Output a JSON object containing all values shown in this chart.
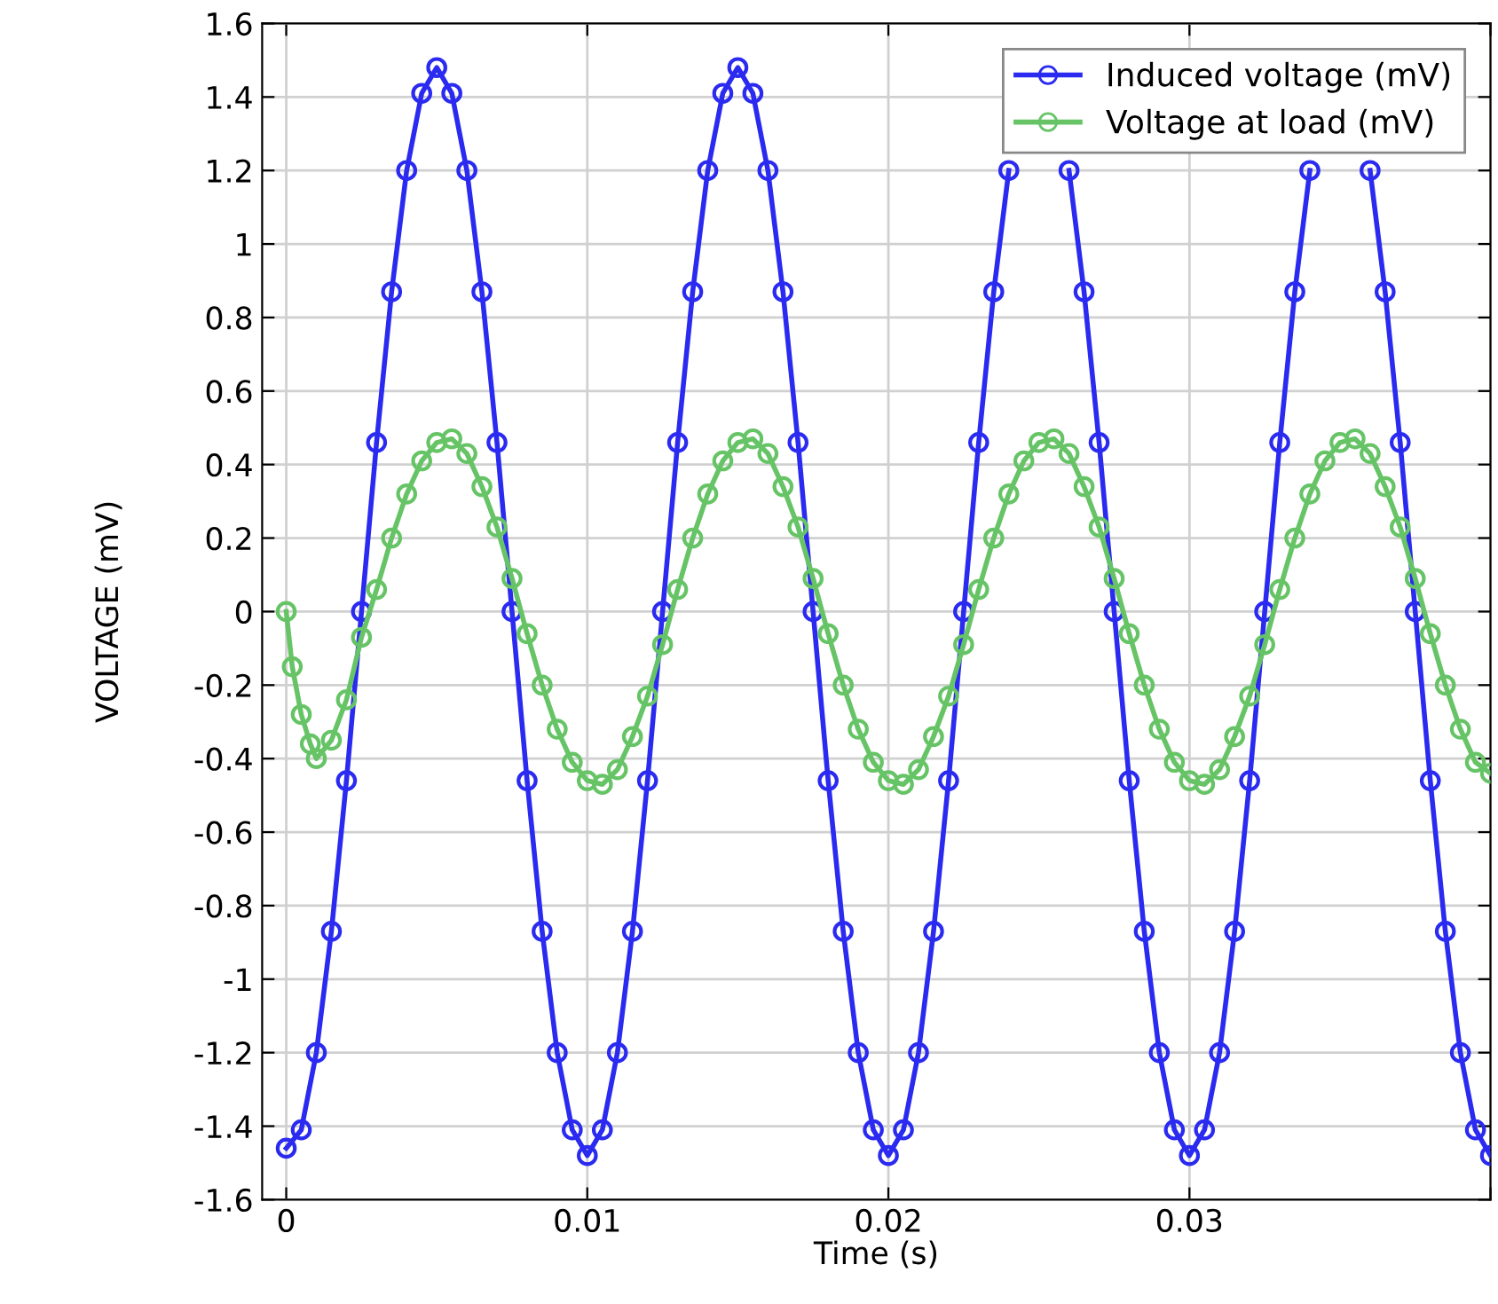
{
  "chart_data": {
    "type": "line",
    "xlabel": "Time (s)",
    "ylabel": "VOLTAGE (mV)",
    "xlim": [
      -0.0008,
      0.04
    ],
    "ylim": [
      -1.6,
      1.6
    ],
    "xticks": [
      0,
      0.01,
      0.02,
      0.03,
      {
        "value": 0.04,
        "label": null
      }
    ],
    "yticks": [
      -1.6,
      -1.4,
      -1.2,
      -1,
      -0.8,
      -0.6,
      -0.4,
      -0.2,
      0,
      0.2,
      0.4,
      0.6,
      0.8,
      1,
      1.2,
      1.4,
      1.6
    ],
    "grid": true,
    "legend": "top right",
    "marker": "circle",
    "line_style": "solid",
    "series": [
      {
        "name": "Induced voltage (mV)",
        "color": "#2a2af0",
        "x": [
          0,
          0.0005,
          0.001,
          0.0015,
          0.002,
          0.0025,
          0.003,
          0.0035,
          0.004,
          0.0045,
          0.005,
          0.0055,
          0.006,
          0.0065,
          0.007,
          0.0075,
          0.008,
          0.0085,
          0.009,
          0.0095,
          0.01,
          0.0105,
          0.011,
          0.0115,
          0.012,
          0.0125,
          0.013,
          0.0135,
          0.014,
          0.0145,
          0.015,
          0.0155,
          0.016,
          0.0165,
          0.017,
          0.0175,
          0.018,
          0.0185,
          0.019,
          0.0195,
          0.02,
          0.0205,
          0.021,
          0.0215,
          0.022,
          0.0225,
          0.023,
          0.0235,
          0.024,
          0.0245,
          0.025,
          0.0255,
          0.026,
          0.0265,
          0.027,
          0.0275,
          0.028,
          0.0285,
          0.029,
          0.0295,
          0.03,
          0.0305,
          0.031,
          0.0315,
          0.032,
          0.0325,
          0.033,
          0.0335,
          0.034,
          0.0345,
          0.035,
          0.0355,
          0.036,
          0.0365,
          0.037,
          0.0375,
          0.038,
          0.0385,
          0.039,
          0.0395,
          0.04
        ],
        "values": [
          -1.46,
          -1.41,
          -1.2,
          -0.87,
          -0.46,
          0,
          0.46,
          0.87,
          1.2,
          1.41,
          1.48,
          1.41,
          1.2,
          0.87,
          0.46,
          0,
          -0.46,
          -0.87,
          -1.2,
          -1.41,
          -1.48,
          -1.41,
          -1.2,
          -0.87,
          -0.46,
          0,
          0.46,
          0.87,
          1.2,
          1.41,
          1.48,
          1.41,
          1.2,
          0.87,
          0.46,
          0,
          -0.46,
          -0.87,
          -1.2,
          -1.41,
          -1.48,
          -1.41,
          -1.2,
          -0.87,
          -0.46,
          0,
          0.46,
          0.87,
          1.2,
          null,
          null,
          null,
          1.2,
          0.87,
          0.46,
          0,
          -0.46,
          -0.87,
          -1.2,
          -1.41,
          -1.48,
          -1.41,
          -1.2,
          -0.87,
          -0.46,
          0,
          0.46,
          0.87,
          1.2,
          null,
          null,
          null,
          1.2,
          0.87,
          0.46,
          0,
          -0.46,
          -0.87,
          -1.2,
          -1.41,
          -1.48
        ]
      },
      {
        "name": "Voltage at load (mV)",
        "color": "#66c466",
        "x": [
          0,
          0.0002,
          0.0005,
          0.0008,
          0.001,
          0.0015,
          0.002,
          0.0025,
          0.003,
          0.0035,
          0.004,
          0.0045,
          0.005,
          0.0055,
          0.006,
          0.0065,
          0.007,
          0.0075,
          0.008,
          0.0085,
          0.009,
          0.0095,
          0.01,
          0.0105,
          0.011,
          0.0115,
          0.012,
          0.0125,
          0.013,
          0.0135,
          0.014,
          0.0145,
          0.015,
          0.0155,
          0.016,
          0.0165,
          0.017,
          0.0175,
          0.018,
          0.0185,
          0.019,
          0.0195,
          0.02,
          0.0205,
          0.021,
          0.0215,
          0.022,
          0.0225,
          0.023,
          0.0235,
          0.024,
          0.0245,
          0.025,
          0.0255,
          0.026,
          0.0265,
          0.027,
          0.0275,
          0.028,
          0.0285,
          0.029,
          0.0295,
          0.03,
          0.0305,
          0.031,
          0.0315,
          0.032,
          0.0325,
          0.033,
          0.0335,
          0.034,
          0.0345,
          0.035,
          0.0355,
          0.036,
          0.0365,
          0.037,
          0.0375,
          0.038,
          0.0385,
          0.039,
          0.0395,
          0.04
        ],
        "values": [
          0,
          -0.15,
          -0.28,
          -0.36,
          -0.4,
          -0.35,
          -0.24,
          -0.07,
          0.06,
          0.2,
          0.32,
          0.41,
          0.46,
          0.47,
          0.43,
          0.34,
          0.23,
          0.09,
          -0.06,
          -0.2,
          -0.32,
          -0.41,
          -0.46,
          -0.47,
          -0.43,
          -0.34,
          -0.23,
          -0.09,
          0.06,
          0.2,
          0.32,
          0.41,
          0.46,
          0.47,
          0.43,
          0.34,
          0.23,
          0.09,
          -0.06,
          -0.2,
          -0.32,
          -0.41,
          -0.46,
          -0.47,
          -0.43,
          -0.34,
          -0.23,
          -0.09,
          0.06,
          0.2,
          0.32,
          0.41,
          0.46,
          0.47,
          0.43,
          0.34,
          0.23,
          0.09,
          -0.06,
          -0.2,
          -0.32,
          -0.41,
          -0.46,
          -0.47,
          -0.43,
          -0.34,
          -0.23,
          -0.09,
          0.06,
          0.2,
          0.32,
          0.41,
          0.46,
          0.47,
          0.43,
          0.34,
          0.23,
          0.09,
          -0.06,
          -0.2,
          -0.32,
          -0.41,
          -0.44
        ]
      }
    ]
  }
}
